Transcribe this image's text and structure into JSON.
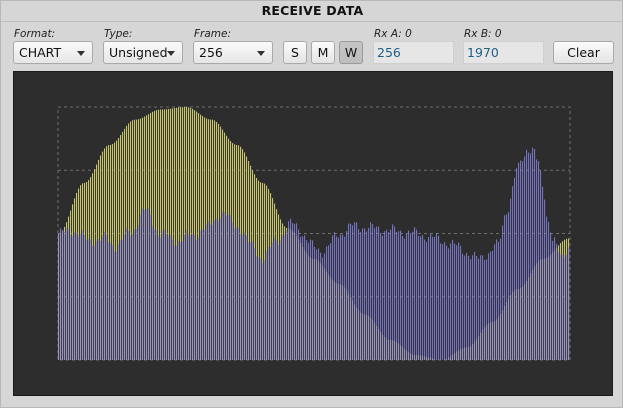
{
  "header": {
    "title": "RECEIVE DATA"
  },
  "toolbar": {
    "format": {
      "label": "Format:",
      "value": "CHART"
    },
    "type": {
      "label": "Type:",
      "value": "Unsigned"
    },
    "frame": {
      "label": "Frame:",
      "value": "256"
    },
    "mode_buttons": [
      {
        "label": "S",
        "pressed": false
      },
      {
        "label": "M",
        "pressed": false
      },
      {
        "label": "W",
        "pressed": true
      }
    ],
    "rx_a": {
      "label": "Rx A: 0",
      "value": "256"
    },
    "rx_b": {
      "label": "Rx B: 0",
      "value": "1970"
    },
    "clear_label": "Clear"
  },
  "colors": {
    "plot_background": "#2d2d2d",
    "series_a": "#c9c66a",
    "series_b": "#8a86e8",
    "grid": "#6f6f6f"
  },
  "chart_data": {
    "type": "bar",
    "sample_count": 256,
    "ylim": [
      0,
      1
    ],
    "series": [
      {
        "shape": "sine arch",
        "points": [
          [
            0,
            0.5
          ],
          [
            0.05,
            0.7
          ],
          [
            0.1,
            0.85
          ],
          [
            0.15,
            0.95
          ],
          [
            0.2,
            0.99
          ],
          [
            0.25,
            1.0
          ],
          [
            0.3,
            0.95
          ],
          [
            0.35,
            0.85
          ],
          [
            0.4,
            0.7
          ],
          [
            0.45,
            0.52
          ],
          [
            0.5,
            0.4
          ],
          [
            0.55,
            0.3
          ],
          [
            0.6,
            0.18
          ],
          [
            0.65,
            0.08
          ],
          [
            0.7,
            0.02
          ],
          [
            0.75,
            0.0
          ],
          [
            0.8,
            0.05
          ],
          [
            0.85,
            0.15
          ],
          [
            0.9,
            0.28
          ],
          [
            0.95,
            0.4
          ],
          [
            1.0,
            0.48
          ]
        ]
      },
      {
        "shape": "noisy profile with peak",
        "points": [
          [
            0,
            0.5
          ],
          [
            0.03,
            0.51
          ],
          [
            0.06,
            0.47
          ],
          [
            0.09,
            0.48
          ],
          [
            0.11,
            0.45
          ],
          [
            0.14,
            0.5
          ],
          [
            0.17,
            0.59
          ],
          [
            0.2,
            0.5
          ],
          [
            0.23,
            0.47
          ],
          [
            0.26,
            0.49
          ],
          [
            0.29,
            0.52
          ],
          [
            0.32,
            0.58
          ],
          [
            0.35,
            0.53
          ],
          [
            0.38,
            0.45
          ],
          [
            0.4,
            0.4
          ],
          [
            0.43,
            0.48
          ],
          [
            0.46,
            0.54
          ],
          [
            0.5,
            0.45
          ],
          [
            0.52,
            0.43
          ],
          [
            0.55,
            0.5
          ],
          [
            0.58,
            0.53
          ],
          [
            0.62,
            0.52
          ],
          [
            0.66,
            0.51
          ],
          [
            0.7,
            0.5
          ],
          [
            0.74,
            0.48
          ],
          [
            0.78,
            0.45
          ],
          [
            0.82,
            0.4
          ],
          [
            0.84,
            0.42
          ],
          [
            0.86,
            0.45
          ],
          [
            0.88,
            0.6
          ],
          [
            0.9,
            0.75
          ],
          [
            0.91,
            0.8
          ],
          [
            0.92,
            0.84
          ],
          [
            0.93,
            0.83
          ],
          [
            0.94,
            0.78
          ],
          [
            0.95,
            0.68
          ],
          [
            0.96,
            0.55
          ],
          [
            0.97,
            0.48
          ],
          [
            0.98,
            0.42
          ],
          [
            0.99,
            0.4
          ],
          [
            1.0,
            0.46
          ]
        ]
      }
    ],
    "grid": true
  }
}
